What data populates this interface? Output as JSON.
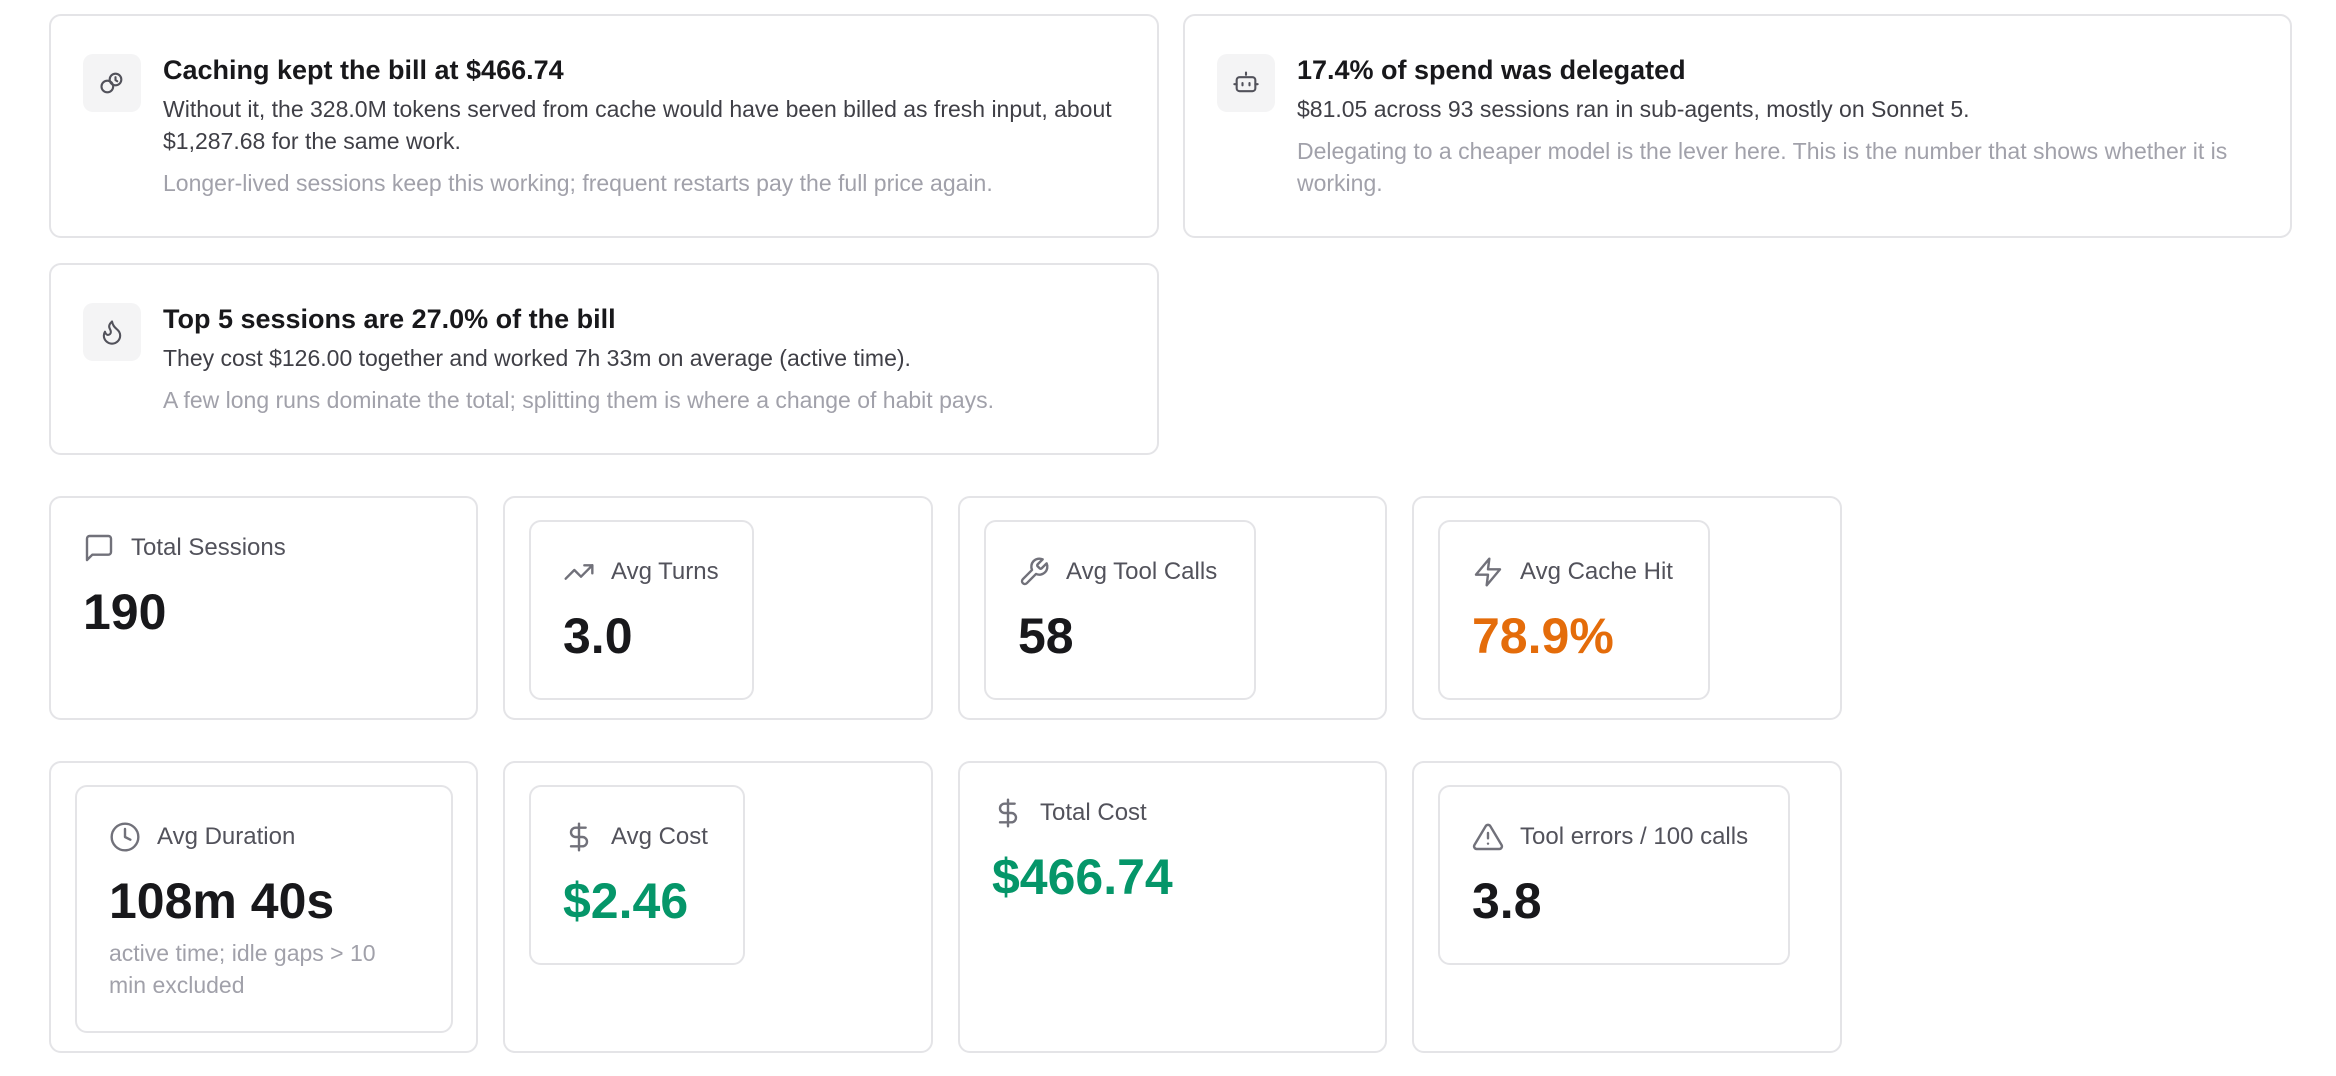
{
  "insights": [
    {
      "icon": "coins-icon",
      "headline": "Caching kept the bill at $466.74",
      "body": "Without it, the 328.0M tokens served from cache would have been billed as fresh input, about $1,287.68 for the same work.",
      "note": "Longer-lived sessions keep this working; frequent restarts pay the full price again."
    },
    {
      "icon": "bot-icon",
      "headline": "17.4% of spend was delegated",
      "body": "$81.05 across 93 sessions ran in sub-agents, mostly on Sonnet 5.",
      "note": "Delegating to a cheaper model is the lever here. This is the number that shows whether it is working."
    },
    {
      "icon": "flame-icon",
      "headline": "Top 5 sessions are 27.0% of the bill",
      "body": "They cost $126.00 together and worked 7h 33m on average (active time).",
      "note": "A few long runs dominate the total; splitting them is where a change of habit pays."
    }
  ],
  "stats": {
    "total_sessions": {
      "icon": "message-square-icon",
      "label": "Total Sessions",
      "value": "190"
    },
    "avg_turns": {
      "icon": "trending-up-icon",
      "label": "Avg Turns",
      "value": "3.0"
    },
    "avg_tool_calls": {
      "icon": "wrench-icon",
      "label": "Avg Tool Calls",
      "value": "58"
    },
    "avg_cache_hit": {
      "icon": "zap-icon",
      "label": "Avg Cache Hit",
      "value": "78.9%",
      "color": "#e46c0a"
    },
    "avg_duration": {
      "icon": "clock-icon",
      "label": "Avg Duration",
      "value": "108m 40s",
      "sub": "active time; idle gaps > 10 min excluded"
    },
    "avg_cost": {
      "icon": "dollar-icon",
      "label": "Avg Cost",
      "value": "$2.46",
      "color": "#059669"
    },
    "total_cost": {
      "icon": "dollar-icon",
      "label": "Total Cost",
      "value": "$466.74",
      "color": "#059669"
    },
    "tool_errors": {
      "icon": "alert-triangle-icon",
      "label": "Tool errors / 100 calls",
      "value": "3.8"
    }
  }
}
